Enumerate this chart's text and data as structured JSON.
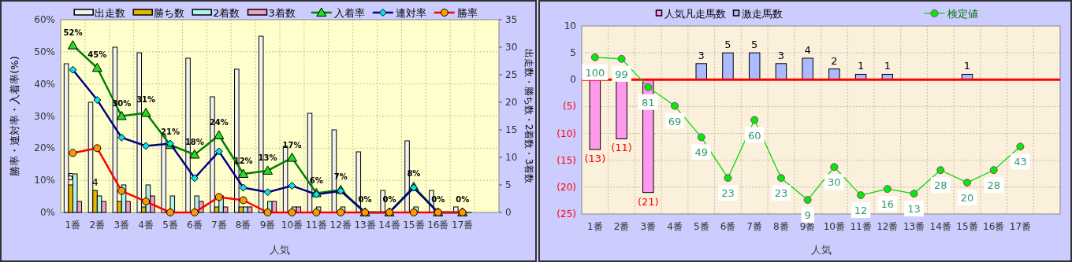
{
  "chart_data": [
    {
      "type": "bar",
      "categories": [
        "1番",
        "2番",
        "3番",
        "4番",
        "5番",
        "6番",
        "7番",
        "8番",
        "9番",
        "10番",
        "11番",
        "12番",
        "13番",
        "14番",
        "15番",
        "16番",
        "17番",
        null
      ],
      "xlabel": "人気",
      "ylabel": "勝率・連対率・入着率(%)",
      "y2label": "出走数・勝ち数・2着数・3着数",
      "ylim": [
        0,
        60
      ],
      "yticks": [
        {
          "value": 0,
          "label": "0%"
        },
        {
          "value": 10,
          "label": "10%"
        },
        {
          "value": 20,
          "label": "20%"
        },
        {
          "value": 30,
          "label": "30%"
        },
        {
          "value": 40,
          "label": "40%"
        },
        {
          "value": 50,
          "label": "50%"
        },
        {
          "value": 60,
          "label": "60%"
        }
      ],
      "y2lim": [
        0,
        35
      ],
      "y2ticks": [
        0,
        5,
        10,
        15,
        20,
        25,
        30,
        35
      ],
      "grid": true,
      "legend": "top",
      "series": [
        {
          "name": "出走数",
          "axis": "y2",
          "color": "#f2f2f2",
          "values": [
            27,
            20,
            30,
            29,
            14,
            28,
            21,
            26,
            32,
            12,
            18,
            15,
            11,
            4,
            13,
            4,
            1,
            null
          ]
        },
        {
          "name": "勝ち数",
          "axis": "y2",
          "color": "#e6b800",
          "values": [
            5,
            4,
            2,
            1,
            0,
            0,
            1,
            1,
            0,
            0,
            0,
            0,
            0,
            0,
            0,
            0,
            0,
            null
          ],
          "value_labels": [
            "5",
            "4",
            null,
            null,
            null,
            null,
            null,
            null,
            null,
            null,
            null,
            null,
            null,
            null,
            null,
            null,
            null,
            null
          ]
        },
        {
          "name": "2着数",
          "axis": "y2",
          "color": "#b3f0f0",
          "values": [
            7,
            3,
            5,
            5,
            3,
            3,
            3,
            1,
            2,
            1,
            1,
            1,
            0,
            0,
            1,
            0,
            0,
            null
          ]
        },
        {
          "name": "3着数",
          "axis": "y2",
          "color": "#f0a0c8",
          "values": [
            2,
            2,
            2,
            3,
            0,
            2,
            1,
            1,
            2,
            1,
            0,
            0,
            0,
            0,
            0,
            0,
            0,
            null
          ]
        },
        {
          "name": "入着率",
          "type": "line",
          "marker": "triangle",
          "color": "#008000",
          "values": [
            52,
            45,
            30,
            31,
            21,
            18,
            24,
            12,
            13,
            17,
            6,
            7,
            0,
            0,
            8,
            0,
            0,
            null
          ],
          "value_labels": [
            "52%",
            "45%",
            "30%",
            "31%",
            "21%",
            "18%",
            "24%",
            "12%",
            "13%",
            "17%",
            "6%",
            "7%",
            "0%",
            "0%",
            "8%",
            "0%",
            "0%",
            null
          ]
        },
        {
          "name": "連対率",
          "type": "line",
          "marker": "diamond",
          "color": "#000080",
          "values": [
            44.4,
            35,
            23.3,
            20.7,
            21.4,
            10.7,
            19,
            7.7,
            6.3,
            8.3,
            5.6,
            6.7,
            0,
            0,
            7.7,
            0,
            0,
            null
          ]
        },
        {
          "name": "勝率",
          "type": "line",
          "marker": "circle",
          "color": "#ff0000",
          "values": [
            18.5,
            20,
            6.7,
            3.4,
            0,
            0,
            4.8,
            3.8,
            0,
            0,
            0,
            0,
            0,
            0,
            0,
            0,
            0,
            null
          ]
        }
      ]
    },
    {
      "type": "bar",
      "categories": [
        "1番",
        "2番",
        "3番",
        "4番",
        "5番",
        "6番",
        "7番",
        "8番",
        "9番",
        "10番",
        "11番",
        "12番",
        "13番",
        "14番",
        "15番",
        "16番",
        "17番",
        null
      ],
      "xlabel": "人気",
      "ylim": [
        -25,
        10
      ],
      "yticks": [
        {
          "value": -25,
          "label": "(25)"
        },
        {
          "value": -20,
          "label": "(20)"
        },
        {
          "value": -15,
          "label": "(15)"
        },
        {
          "value": -10,
          "label": "(10)"
        },
        {
          "value": -5,
          "label": "(5)"
        },
        0,
        5,
        10
      ],
      "y2lim": [
        0,
        120
      ],
      "stacked": true,
      "grid": true,
      "legend": "top",
      "ref_lines": [
        {
          "axis": "y",
          "value": 0,
          "color": "#ff0000"
        }
      ],
      "series": [
        {
          "name": "人気凡走馬数",
          "color": "#ff99ee",
          "values": [
            -13,
            -11,
            -21,
            null,
            null,
            null,
            null,
            null,
            null,
            null,
            null,
            null,
            null,
            null,
            null,
            null,
            null,
            null
          ],
          "value_labels": [
            "(13)",
            "(11)",
            "(21)",
            null,
            null,
            null,
            null,
            null,
            null,
            null,
            null,
            null,
            null,
            null,
            null,
            null,
            null,
            null
          ]
        },
        {
          "name": "激走馬数",
          "color": "#aabbff",
          "values": [
            null,
            null,
            null,
            null,
            3,
            5,
            5,
            3,
            4,
            2,
            1,
            1,
            null,
            null,
            1,
            null,
            null,
            null
          ],
          "value_labels": [
            null,
            null,
            null,
            null,
            "3",
            "5",
            "5",
            "3",
            "4",
            "2",
            "1",
            "1",
            null,
            null,
            "1",
            null,
            null,
            null
          ]
        },
        {
          "name": "検定値",
          "type": "line",
          "axis": "y2",
          "marker": "circle",
          "color": "#00dd00",
          "values": [
            100,
            99,
            81,
            69,
            49,
            23,
            60,
            23,
            9,
            30,
            12,
            16,
            13,
            28,
            20,
            28,
            43,
            null
          ],
          "value_labels": [
            "100",
            "99",
            "81",
            "69",
            "49",
            "23",
            "60",
            "23",
            "9",
            "30",
            "12",
            "16",
            "13",
            "28",
            "20",
            "28",
            "43",
            null
          ]
        }
      ]
    }
  ]
}
